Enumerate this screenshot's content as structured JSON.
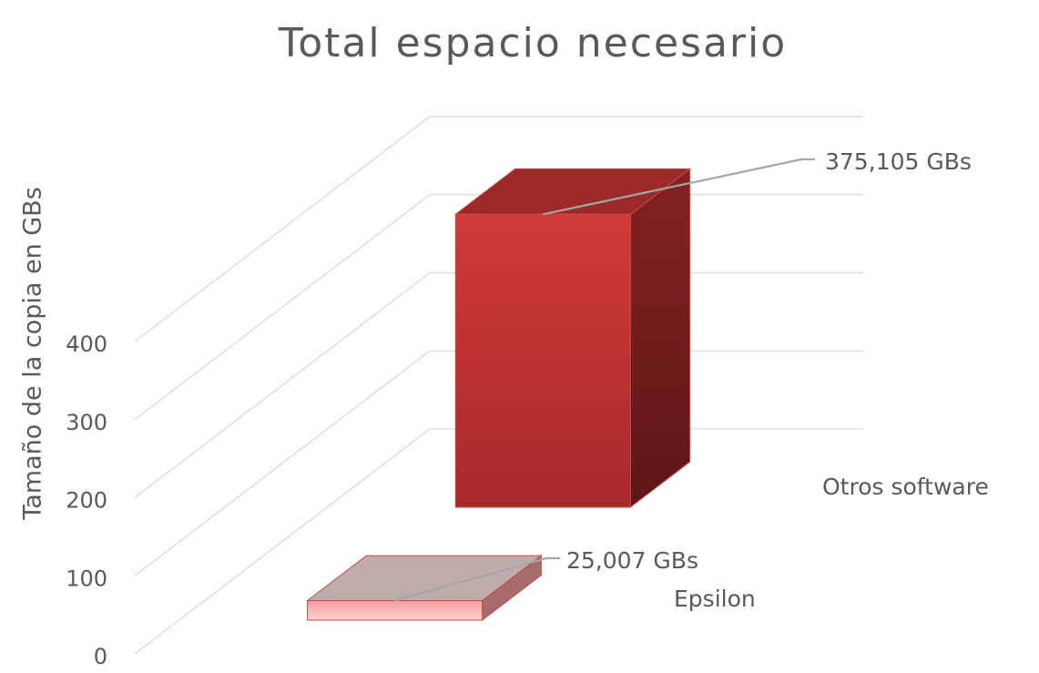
{
  "chart_data": {
    "type": "bar3d",
    "title": "Total espacio necesario",
    "y_label": "Tamaño de la copia en GBs",
    "categories": [
      "Epsilon",
      "Otros software"
    ],
    "values": [
      25.007,
      375.105
    ],
    "value_labels": [
      "25,007 GBs",
      "375,105 GBs"
    ],
    "colors": [
      "#f8b4b4",
      "#c83639"
    ],
    "ylim": [
      0,
      400
    ],
    "yticks": [
      0,
      100,
      200,
      300,
      400
    ],
    "grid": true
  }
}
